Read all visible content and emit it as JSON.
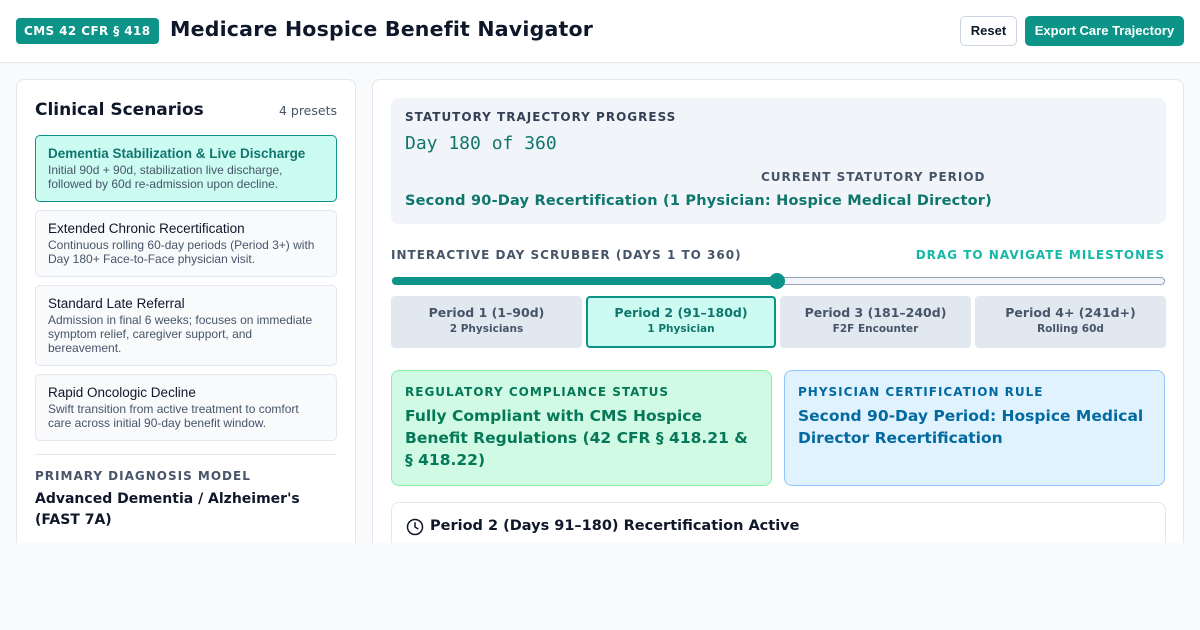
{
  "header": {
    "badge": "CMS 42 CFR § 418",
    "title": "Medicare Hospice Benefit Navigator",
    "reset_label": "Reset",
    "export_label": "Export Care Trajectory"
  },
  "sidebar": {
    "title": "Clinical Scenarios",
    "count": "4 presets",
    "scenarios": [
      {
        "title": "Dementia Stabilization & Live Discharge",
        "desc": "Initial 90d + 90d, stabilization live discharge, followed by 60d re-admission upon decline.",
        "selected": true
      },
      {
        "title": "Extended Chronic Recertification",
        "desc": "Continuous rolling 60-day periods (Period 3+) with Day 180+ Face-to-Face physician visit.",
        "selected": false
      },
      {
        "title": "Standard Late Referral",
        "desc": "Admission in final 6 weeks; focuses on immediate symptom relief, caregiver support, and bereavement.",
        "selected": false
      },
      {
        "title": "Rapid Oncologic Decline",
        "desc": "Swift transition from active treatment to comfort care across initial 90-day benefit window.",
        "selected": false
      }
    ],
    "diagnosis": {
      "label": "PRIMARY DIAGNOSIS MODEL",
      "value": "Advanced Dementia / Alzheimer's (FAST 7A)"
    }
  },
  "progress": {
    "label": "STATUTORY TRAJECTORY PROGRESS",
    "day_text": "Day 180 of 360",
    "current_day": 180,
    "total_days": 360,
    "period_label": "CURRENT STATUTORY PERIOD",
    "period_value": "Second 90-Day Recertification (1 Physician: Hospice Medical Director)"
  },
  "scrubber": {
    "label": "INTERACTIVE DAY SCRUBBER (DAYS 1 TO 360)",
    "hint": "DRAG TO NAVIGATE MILESTONES",
    "min": 1,
    "max": 360,
    "value": 180,
    "periods": [
      {
        "title": "Period 1 (1–90d)",
        "sub": "2 Physicians",
        "active": false
      },
      {
        "title": "Period 2 (91–180d)",
        "sub": "1 Physician",
        "active": true
      },
      {
        "title": "Period 3 (181–240d)",
        "sub": "F2F Encounter",
        "active": false
      },
      {
        "title": "Period 4+ (241d+)",
        "sub": "Rolling 60d",
        "active": false
      }
    ]
  },
  "compliance": {
    "label": "REGULATORY COMPLIANCE STATUS",
    "value": "Fully Compliant with CMS Hospice Benefit Regulations (42 CFR § 418.21 & § 418.22)"
  },
  "rule": {
    "label": "PHYSICIAN CERTIFICATION RULE",
    "value": "Second 90-Day Period: Hospice Medical Director Recertification"
  },
  "active_period": {
    "icon": "clock-icon",
    "title": "Period 2 (Days 91–180) Recertification Active"
  },
  "colors": {
    "accent": "#0d9488",
    "accent_dark": "#0f766e",
    "compliant_bg": "#d1fae5",
    "rule_bg": "#e0f2fe"
  }
}
